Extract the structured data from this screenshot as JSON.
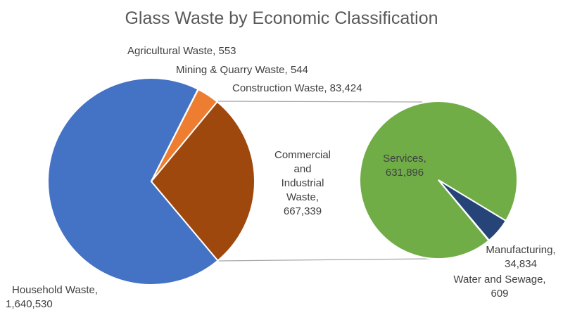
{
  "chart_data": {
    "type": "pie",
    "subtype": "pie-of-pie",
    "title": "Glass Waste by Economic Classification",
    "primary": {
      "slices": [
        {
          "label": "Household Waste",
          "value": 1640530,
          "display": "1,640,530",
          "color": "#4472C4"
        },
        {
          "label": "Agricultural Waste",
          "value": 553,
          "display": "553",
          "color": "#ED7D31"
        },
        {
          "label": "Mining & Quarry Waste",
          "value": 544,
          "display": "544",
          "color": "#ED7D31"
        },
        {
          "label": "Construction Waste",
          "value": 83424,
          "display": "83,424",
          "color": "#ED7D31"
        },
        {
          "label": "Commercial and Industrial Waste",
          "value": 667339,
          "display": "667,339",
          "color": "#9E480E"
        }
      ]
    },
    "secondary": {
      "slices": [
        {
          "label": "Services",
          "value": 631896,
          "display": "631,896",
          "color": "#70AD47"
        },
        {
          "label": "Manufacturing",
          "value": 34834,
          "display": "34,834",
          "color": "#264478"
        },
        {
          "label": "Water and Sewage",
          "value": 609,
          "display": "609",
          "color": "#264478"
        }
      ]
    },
    "labels": {
      "household": [
        "Household Waste,",
        "1,640,530"
      ],
      "agricultural": "Agricultural Waste, 553",
      "mining": "Mining & Quarry Waste, 544",
      "construction": "Construction Waste, 83,424",
      "commercial": [
        "Commercial",
        "and",
        "Industrial",
        "Waste,",
        "667,339"
      ],
      "services": [
        "Services,",
        "631,896"
      ],
      "manufacturing": [
        "Manufacturing,",
        "34,834"
      ],
      "water": [
        "Water and Sewage,",
        "609"
      ]
    }
  }
}
